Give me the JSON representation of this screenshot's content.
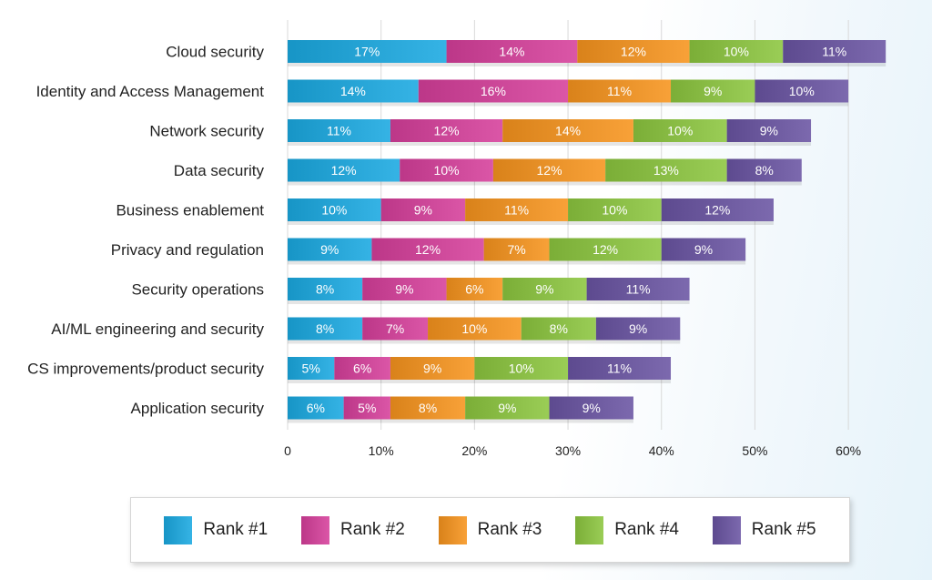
{
  "chart_data": {
    "type": "bar",
    "orientation": "horizontal",
    "stacked": true,
    "categories": [
      "Cloud security",
      "Identity and Access Management",
      "Network security",
      "Data security",
      "Business enablement",
      "Privacy and regulation",
      "Security operations",
      "AI/ML engineering and security",
      "CS improvements/product security",
      "Application security"
    ],
    "series": [
      {
        "name": "Rank #1",
        "color": "#1aa9e1",
        "values": [
          17,
          14,
          11,
          12,
          10,
          9,
          8,
          8,
          5,
          6
        ]
      },
      {
        "name": "Rank #2",
        "color": "#d63f9b",
        "values": [
          14,
          16,
          12,
          10,
          9,
          12,
          9,
          7,
          6,
          5
        ]
      },
      {
        "name": "Rank #3",
        "color": "#f7941d",
        "values": [
          12,
          11,
          14,
          12,
          11,
          7,
          6,
          10,
          9,
          8
        ]
      },
      {
        "name": "Rank #4",
        "color": "#8cc63f",
        "values": [
          10,
          9,
          10,
          13,
          10,
          12,
          9,
          8,
          10,
          9
        ]
      },
      {
        "name": "Rank #5",
        "color": "#6a54a3",
        "values": [
          11,
          10,
          9,
          8,
          12,
          9,
          11,
          9,
          11,
          9
        ]
      }
    ],
    "data_labels": [
      [
        "17%",
        "14%",
        "12%",
        "10%",
        "11%"
      ],
      [
        "14%",
        "16%",
        "11%",
        "9%",
        "10%"
      ],
      [
        "11%",
        "12%",
        "14%",
        "10%",
        "9%"
      ],
      [
        "12%",
        "10%",
        "12%",
        "13%",
        "8%"
      ],
      [
        "10%",
        "9%",
        "11%",
        "10%",
        "12%"
      ],
      [
        "9%",
        "12%",
        "7%",
        "12%",
        "9%"
      ],
      [
        "8%",
        "9%",
        "6%",
        "9%",
        "11%"
      ],
      [
        "8%",
        "7%",
        "10%",
        "8%",
        "9%"
      ],
      [
        "5%",
        "6%",
        "9%",
        "10%",
        "11%"
      ],
      [
        "6%",
        "5%",
        "8%",
        "9%",
        "9%"
      ]
    ],
    "xlim": [
      0,
      67
    ],
    "xticks": [
      0,
      10,
      20,
      30,
      40,
      50,
      60
    ],
    "xtick_labels": [
      "0",
      "10%",
      "20%",
      "30%",
      "40%",
      "50%",
      "60%"
    ],
    "grid": true,
    "legend_position": "bottom"
  }
}
